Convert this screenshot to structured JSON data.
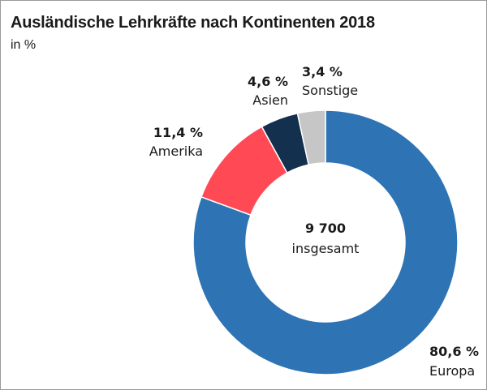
{
  "chart_data": {
    "type": "pie",
    "variant": "donut",
    "title": "Ausländische Lehrkräfte nach Kontinenten 2018",
    "subtitle": "in %",
    "center_value": "9 700",
    "center_label": "insgesamt",
    "slices": [
      {
        "name": "Europa",
        "value": 80.6,
        "value_label": "80,6 %",
        "color": "#2e74b5"
      },
      {
        "name": "Amerika",
        "value": 11.4,
        "value_label": "11,4 %",
        "color": "#ff4a56"
      },
      {
        "name": "Asien",
        "value": 4.6,
        "value_label": "4,6 %",
        "color": "#13304f"
      },
      {
        "name": "Sonstige",
        "value": 3.4,
        "value_label": "3,4 %",
        "color": "#c6c6c6"
      }
    ]
  }
}
